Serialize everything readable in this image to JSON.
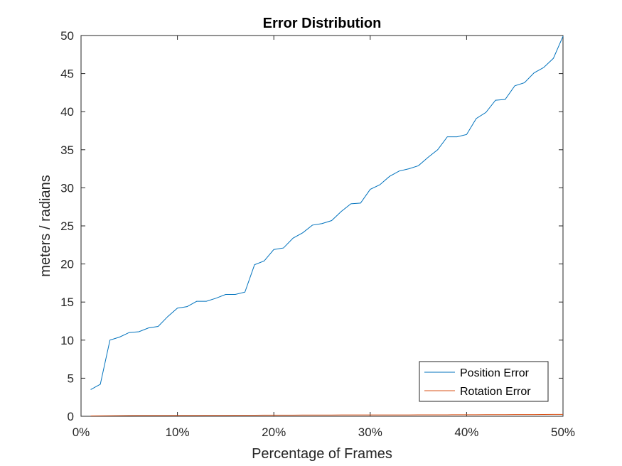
{
  "chart_data": {
    "type": "line",
    "title": "Error Distribution",
    "xlabel": "Percentage of Frames",
    "ylabel": "meters / radians",
    "xlim": [
      0,
      50
    ],
    "ylim": [
      0,
      50
    ],
    "x_ticks": [
      0,
      10,
      20,
      30,
      40,
      50
    ],
    "x_tick_labels": [
      "0%",
      "10%",
      "20%",
      "30%",
      "40%",
      "50%"
    ],
    "y_ticks": [
      0,
      5,
      10,
      15,
      20,
      25,
      30,
      35,
      40,
      45,
      50
    ],
    "y_tick_labels": [
      "0",
      "5",
      "10",
      "15",
      "20",
      "25",
      "30",
      "35",
      "40",
      "45",
      "50"
    ],
    "grid": false,
    "legend_position": "bottom-right",
    "x": [
      1,
      2,
      3,
      4,
      5,
      6,
      7,
      8,
      9,
      10,
      11,
      12,
      13,
      14,
      15,
      16,
      17,
      18,
      19,
      20,
      21,
      22,
      23,
      24,
      25,
      26,
      27,
      28,
      29,
      30,
      31,
      32,
      33,
      34,
      35,
      36,
      37,
      38,
      39,
      40,
      41,
      42,
      43,
      44,
      45,
      46,
      47,
      48,
      49,
      50
    ],
    "series": [
      {
        "name": "Position Error",
        "color": "#0072BD",
        "values": [
          3.5,
          4.2,
          10.0,
          10.4,
          11.0,
          11.1,
          11.6,
          11.8,
          13.1,
          14.2,
          14.4,
          15.1,
          15.1,
          15.5,
          16.0,
          16.0,
          16.3,
          19.9,
          20.4,
          21.9,
          22.1,
          23.4,
          24.1,
          25.1,
          25.3,
          25.7,
          26.9,
          27.9,
          28.0,
          29.8,
          30.4,
          31.5,
          32.2,
          32.5,
          32.9,
          34.0,
          35.0,
          36.7,
          36.7,
          37.0,
          39.1,
          39.9,
          41.5,
          41.6,
          43.4,
          43.8,
          45.1,
          45.8,
          47.0,
          49.9
        ]
      },
      {
        "name": "Rotation Error",
        "color": "#D95319",
        "values": [
          0.05,
          0.06,
          0.07,
          0.08,
          0.09,
          0.1,
          0.1,
          0.11,
          0.11,
          0.12,
          0.12,
          0.12,
          0.13,
          0.13,
          0.13,
          0.14,
          0.14,
          0.14,
          0.15,
          0.15,
          0.15,
          0.15,
          0.16,
          0.16,
          0.16,
          0.16,
          0.17,
          0.17,
          0.17,
          0.17,
          0.18,
          0.18,
          0.18,
          0.18,
          0.19,
          0.19,
          0.19,
          0.19,
          0.2,
          0.2,
          0.2,
          0.21,
          0.21,
          0.21,
          0.22,
          0.22,
          0.22,
          0.23,
          0.24,
          0.25
        ]
      }
    ]
  }
}
